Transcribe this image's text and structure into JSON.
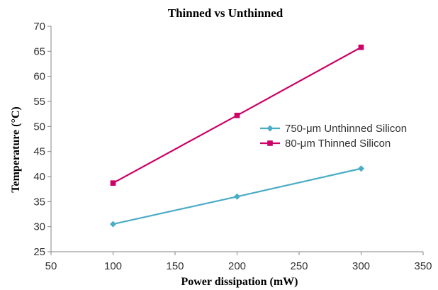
{
  "chart_data": {
    "type": "line",
    "title": "Thinned vs Unthinned",
    "xlabel": "Power dissipation (mW)",
    "ylabel": "Temperature (°C)",
    "x": [
      100,
      200,
      300
    ],
    "xlim": [
      50,
      350
    ],
    "ylim": [
      25,
      70
    ],
    "x_ticks": [
      50,
      100,
      150,
      200,
      250,
      300,
      350
    ],
    "y_ticks": [
      25,
      30,
      35,
      40,
      45,
      50,
      55,
      60,
      65,
      70
    ],
    "grid": false,
    "legend_position": "right",
    "series": [
      {
        "name": "750-μm Unthinned Silicon",
        "values": [
          30.5,
          36.0,
          41.6
        ],
        "color": "#4bacc6",
        "marker": "diamond"
      },
      {
        "name": "80-μm Thinned Silicon",
        "values": [
          38.7,
          52.2,
          65.8
        ],
        "color": "#cc0066",
        "marker": "square"
      }
    ]
  }
}
